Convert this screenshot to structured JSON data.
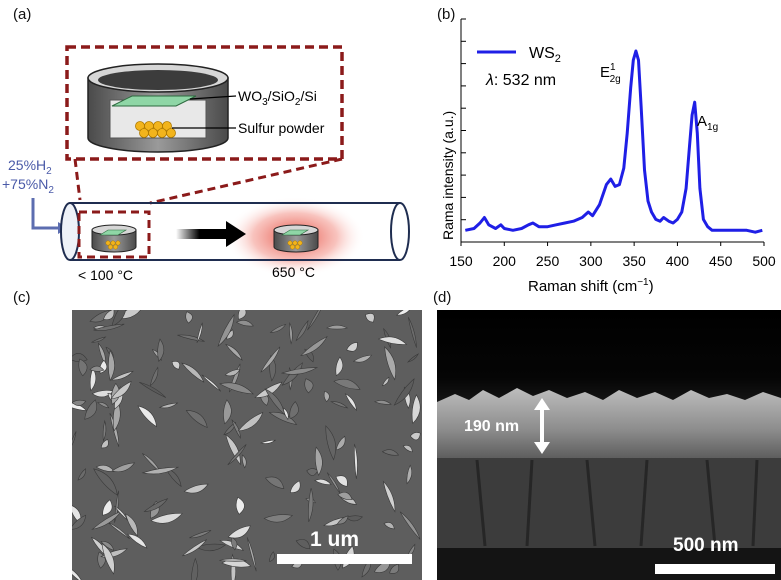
{
  "panels": {
    "a": "(a)",
    "b": "(b)",
    "c": "(c)",
    "d": "(d)"
  },
  "schematic": {
    "gas_h2_pct": "25%",
    "gas_h2_base": "H",
    "gas_h2_sub": "2",
    "gas_n2_pct": "+75%",
    "gas_n2_base": "N",
    "gas_n2_sub": "2",
    "substrate_parts": [
      "WO",
      "3",
      "/SiO",
      "2",
      "/Si"
    ],
    "sulfur_label": "Sulfur powder",
    "temp_low": "< 100 °C",
    "temp_high": "650 °C",
    "colors": {
      "dashed_box": "#8b1a1a",
      "tube": "#1f2d50",
      "gas_arrow": "#5c6db0",
      "heat": "#e0392b",
      "film": "#8fd6a6",
      "sulfur": "#f2b41c"
    }
  },
  "chart_data": {
    "type": "line",
    "xlabel_parts": [
      "Raman shift (cm",
      "−1",
      ")"
    ],
    "ylabel": "Rama intensity (a.u.)",
    "xlim": [
      150,
      500
    ],
    "xticks": [
      150,
      200,
      250,
      300,
      350,
      400,
      450,
      500
    ],
    "yticks_unlabeled": 10,
    "legend": {
      "name_base": "WS",
      "name_sub": "2",
      "lambda_symbol": "λ",
      "lambda_text": ": 532 nm",
      "color": "#1f1fe6"
    },
    "annotations": [
      {
        "base": "E",
        "sup": "1",
        "sub": "2g",
        "x": 352
      },
      {
        "base": "A",
        "sub": "1g",
        "x": 420
      }
    ],
    "series": [
      {
        "color": "#1f1fe6",
        "x": [
          155,
          165,
          172,
          177,
          182,
          190,
          196,
          200,
          210,
          220,
          228,
          233,
          240,
          250,
          260,
          270,
          280,
          290,
          297,
          302,
          310,
          318,
          323,
          328,
          333,
          338,
          342,
          346,
          349,
          352,
          355,
          358,
          362,
          366,
          370,
          375,
          380,
          384,
          390,
          395,
          400,
          405,
          410,
          414,
          417,
          420,
          423,
          426,
          430,
          435,
          440,
          450,
          460,
          470,
          480,
          490,
          498
        ],
        "y": [
          0.02,
          0.03,
          0.06,
          0.09,
          0.05,
          0.03,
          0.05,
          0.03,
          0.02,
          0.03,
          0.05,
          0.06,
          0.04,
          0.04,
          0.05,
          0.06,
          0.07,
          0.09,
          0.12,
          0.1,
          0.16,
          0.27,
          0.3,
          0.26,
          0.27,
          0.36,
          0.55,
          0.8,
          0.95,
          1.0,
          0.95,
          0.7,
          0.35,
          0.18,
          0.12,
          0.08,
          0.07,
          0.09,
          0.07,
          0.06,
          0.08,
          0.12,
          0.25,
          0.48,
          0.65,
          0.72,
          0.55,
          0.25,
          0.08,
          0.04,
          0.02,
          0.02,
          0.02,
          0.02,
          0.02,
          0.01,
          0.02
        ]
      }
    ]
  },
  "sem_top": {
    "scalebar_label": "1 um"
  },
  "sem_cross": {
    "thickness_label": "190 nm",
    "scalebar_label": "500 nm"
  }
}
